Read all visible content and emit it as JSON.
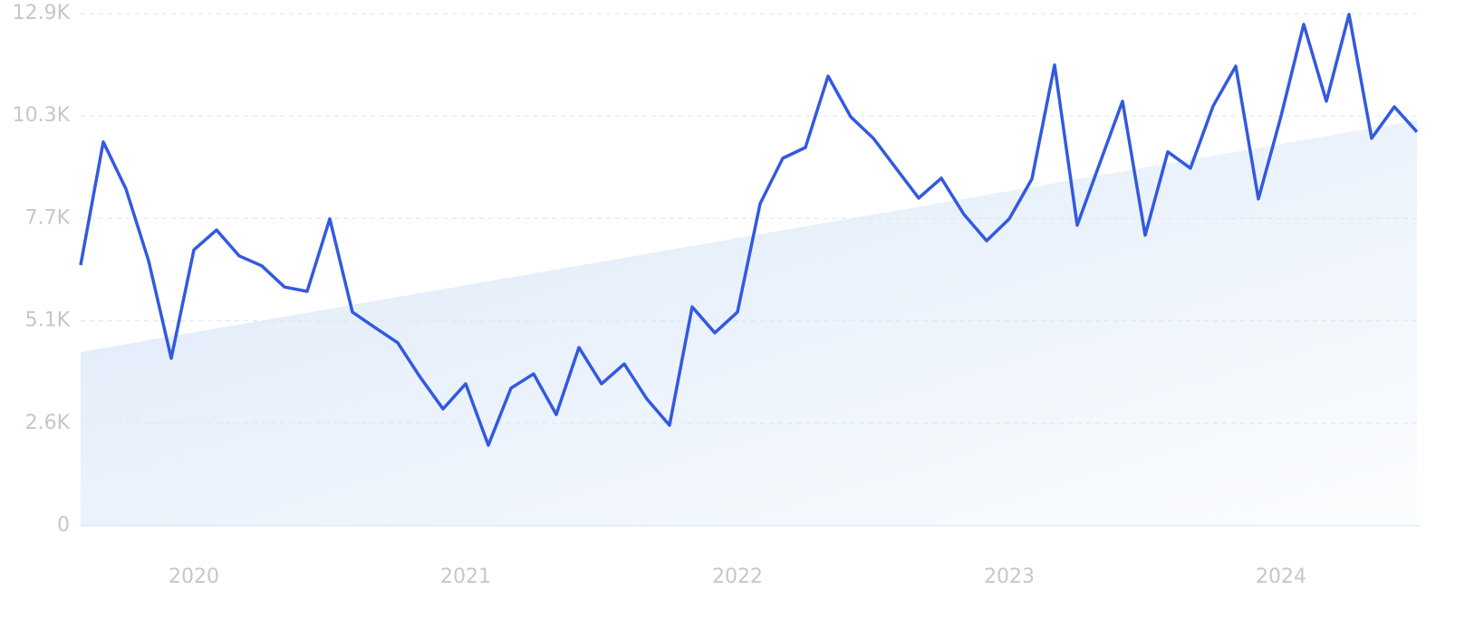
{
  "chart_data": {
    "type": "line",
    "categories": [
      null,
      null,
      null,
      null,
      null,
      "2020",
      null,
      null,
      null,
      null,
      null,
      null,
      null,
      null,
      null,
      null,
      null,
      "2021",
      null,
      null,
      null,
      null,
      null,
      null,
      null,
      null,
      null,
      null,
      null,
      "2022",
      null,
      null,
      null,
      null,
      null,
      null,
      null,
      null,
      null,
      null,
      null,
      "2023",
      null,
      null,
      null,
      null,
      null,
      null,
      null,
      null,
      null,
      null,
      null,
      "2024",
      null,
      null,
      null,
      null,
      null,
      null
    ],
    "series": [
      {
        "color": "#3259e0",
        "values": [
          6540,
          9630,
          8450,
          6650,
          4200,
          6920,
          7420,
          6770,
          6520,
          5990,
          5880,
          7700,
          5360,
          4970,
          4590,
          3720,
          2930,
          3560,
          2020,
          3450,
          3810,
          2790,
          4470,
          3560,
          4060,
          3180,
          2520,
          5490,
          4840,
          5360,
          8080,
          9220,
          9490,
          11280,
          10260,
          9720,
          8970,
          8220,
          8720,
          7810,
          7150,
          7700,
          8700,
          11560,
          7540,
          9100,
          10650,
          7290,
          9380,
          8970,
          10530,
          11530,
          8200,
          10280,
          12580,
          10650,
          12830,
          9720,
          10510,
          9880
        ]
      }
    ],
    "trend": {
      "values": [
        4360,
        10170
      ],
      "color": "#dbe8f8"
    },
    "ylim": [
      0,
      12850
    ],
    "yticks": [
      0,
      {
        "value": 2570,
        "label": "2.6K"
      },
      {
        "value": 5140,
        "label": "5.1K"
      },
      {
        "value": 7710,
        "label": "7.7K"
      },
      {
        "value": 10280,
        "label": "10.3K"
      },
      {
        "value": 12850,
        "label": "12.9K"
      }
    ],
    "grid": true
  }
}
